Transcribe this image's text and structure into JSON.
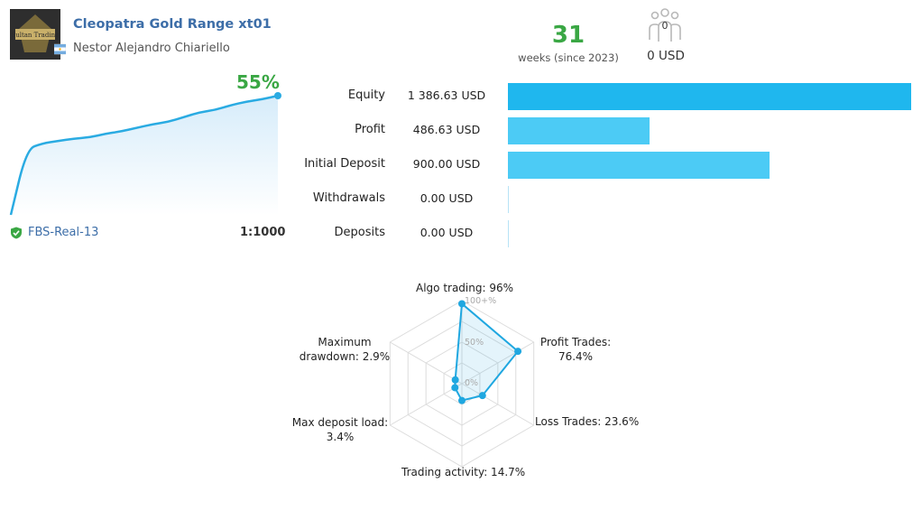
{
  "header": {
    "avatar_text": "Sultan Trading",
    "title": "Cleopatra Gold Range xt01",
    "author": "Nestor Alejandro Chiariello",
    "weeks_value": "31",
    "weeks_label": "weeks (since 2023)",
    "subscribers_count": "0",
    "subscription_price": "0 USD"
  },
  "growth": {
    "percent": "55%",
    "server": "FBS-Real-13",
    "leverage": "1:1000",
    "curve": [
      0,
      0.55,
      0.6,
      0.62,
      0.64,
      0.65,
      0.68,
      0.7,
      0.73,
      0.76,
      0.78,
      0.82,
      0.86,
      0.88,
      0.92,
      0.95,
      0.97,
      1.0
    ],
    "color": "#2aabe2"
  },
  "balance": [
    {
      "label": "Equity",
      "value": "1 386.63 USD",
      "amount": 1386.63
    },
    {
      "label": "Profit",
      "value": "486.63 USD",
      "amount": 486.63
    },
    {
      "label": "Initial Deposit",
      "value": "900.00 USD",
      "amount": 900.0
    },
    {
      "label": "Withdrawals",
      "value": "0.00 USD",
      "amount": 0
    },
    {
      "label": "Deposits",
      "value": "0.00 USD",
      "amount": 0
    }
  ],
  "radar": {
    "axes": [
      {
        "label": "Algo trading: 96%",
        "value": 96
      },
      {
        "label": "Profit Trades: 76.4%",
        "value": 76.4
      },
      {
        "label": "Loss Trades: 23.6%",
        "value": 23.6
      },
      {
        "label": "Trading activity: 14.7%",
        "value": 14.7
      },
      {
        "label": "Max deposit load: 3.4%",
        "value": 3.4
      },
      {
        "label": "Maximum drawdown: 2.9%",
        "value": 2.9
      }
    ],
    "ticks": [
      "100+%",
      "50%",
      "0%"
    ],
    "color": "#1fa7e0"
  }
}
